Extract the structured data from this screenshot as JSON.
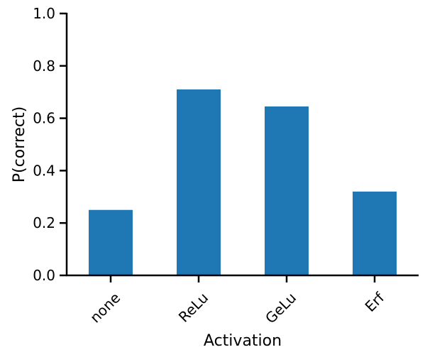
{
  "chart_data": {
    "type": "bar",
    "title": "",
    "xlabel": "Activation",
    "ylabel": "P(correct)",
    "categories": [
      "none",
      "ReLu",
      "GeLu",
      "Erf"
    ],
    "values": [
      0.25,
      0.71,
      0.645,
      0.32
    ],
    "ylim": [
      0,
      1.0
    ],
    "yticks": [
      "0.0",
      "0.2",
      "0.4",
      "0.6",
      "0.8",
      "1.0"
    ],
    "bar_color": "#1f77b4",
    "grid": false,
    "legend": "none"
  }
}
